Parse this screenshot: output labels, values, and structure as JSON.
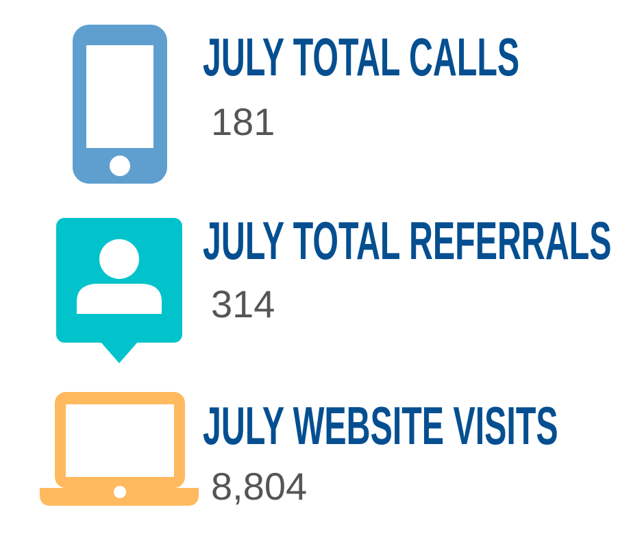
{
  "colors": {
    "title": "#054f91",
    "value": "#555555",
    "phone_icon": "#5f9fcf",
    "referral_icon": "#02c3cb",
    "laptop_icon": "#ffb95e"
  },
  "stats": [
    {
      "icon": "smartphone-icon",
      "title": "JULY TOTAL CALLS",
      "value": "181"
    },
    {
      "icon": "user-referral-icon",
      "title": "JULY TOTAL REFERRALS",
      "value": "314"
    },
    {
      "icon": "laptop-icon",
      "title": "JULY WEBSITE VISITS",
      "value": "8,804"
    }
  ]
}
